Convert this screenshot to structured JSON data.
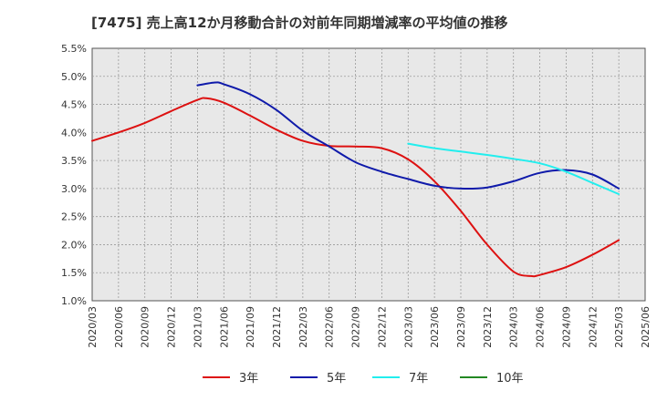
{
  "chart_data": {
    "type": "line",
    "title": "[7475]  売上高12か月移動合計の対前年同期増減率の平均値の推移",
    "xlabel": "",
    "ylabel": "",
    "ylim": [
      1.0,
      5.5
    ],
    "y_ticks": [
      "1.0%",
      "1.5%",
      "2.0%",
      "2.5%",
      "3.0%",
      "3.5%",
      "4.0%",
      "4.5%",
      "5.0%",
      "5.5%"
    ],
    "x_ticks": [
      "2020/03",
      "2020/06",
      "2020/09",
      "2020/12",
      "2021/03",
      "2021/06",
      "2021/09",
      "2021/12",
      "2022/03",
      "2022/06",
      "2022/09",
      "2022/12",
      "2023/03",
      "2023/06",
      "2023/09",
      "2023/12",
      "2024/03",
      "2024/06",
      "2024/09",
      "2024/12",
      "2025/03",
      "2025/06"
    ],
    "grid": true,
    "legend_position": "bottom",
    "series": [
      {
        "name": "3年",
        "color": "#dd1111",
        "x": [
          "2020/03",
          "2020/06",
          "2020/09",
          "2020/12",
          "2021/03",
          "2021/04",
          "2021/06",
          "2021/09",
          "2021/12",
          "2022/03",
          "2022/06",
          "2022/09",
          "2022/12",
          "2023/03",
          "2023/06",
          "2023/09",
          "2023/12",
          "2024/03",
          "2024/05",
          "2024/06",
          "2024/09",
          "2024/12",
          "2025/03"
        ],
        "values": [
          3.85,
          4.0,
          4.17,
          4.38,
          4.58,
          4.61,
          4.53,
          4.3,
          4.05,
          3.85,
          3.76,
          3.75,
          3.72,
          3.52,
          3.13,
          2.6,
          2.0,
          1.52,
          1.44,
          1.46,
          1.6,
          1.82,
          2.08
        ]
      },
      {
        "name": "5年",
        "color": "#0f1aaa",
        "x": [
          "2021/03",
          "2021/05",
          "2021/06",
          "2021/09",
          "2021/12",
          "2022/03",
          "2022/06",
          "2022/09",
          "2022/12",
          "2023/03",
          "2023/06",
          "2023/09",
          "2023/12",
          "2024/03",
          "2024/06",
          "2024/09",
          "2024/12",
          "2025/03"
        ],
        "values": [
          4.84,
          4.89,
          4.86,
          4.68,
          4.4,
          4.03,
          3.75,
          3.47,
          3.3,
          3.17,
          3.05,
          3.0,
          3.02,
          3.13,
          3.28,
          3.33,
          3.25,
          3.0
        ]
      },
      {
        "name": "7年",
        "color": "#22eeee",
        "x": [
          "2023/03",
          "2023/06",
          "2023/09",
          "2023/12",
          "2024/03",
          "2024/06",
          "2024/09",
          "2024/12",
          "2025/03"
        ],
        "values": [
          3.8,
          3.72,
          3.66,
          3.6,
          3.53,
          3.45,
          3.3,
          3.1,
          2.9
        ]
      },
      {
        "name": "10年",
        "color": "#228822",
        "x": [],
        "values": []
      }
    ]
  }
}
